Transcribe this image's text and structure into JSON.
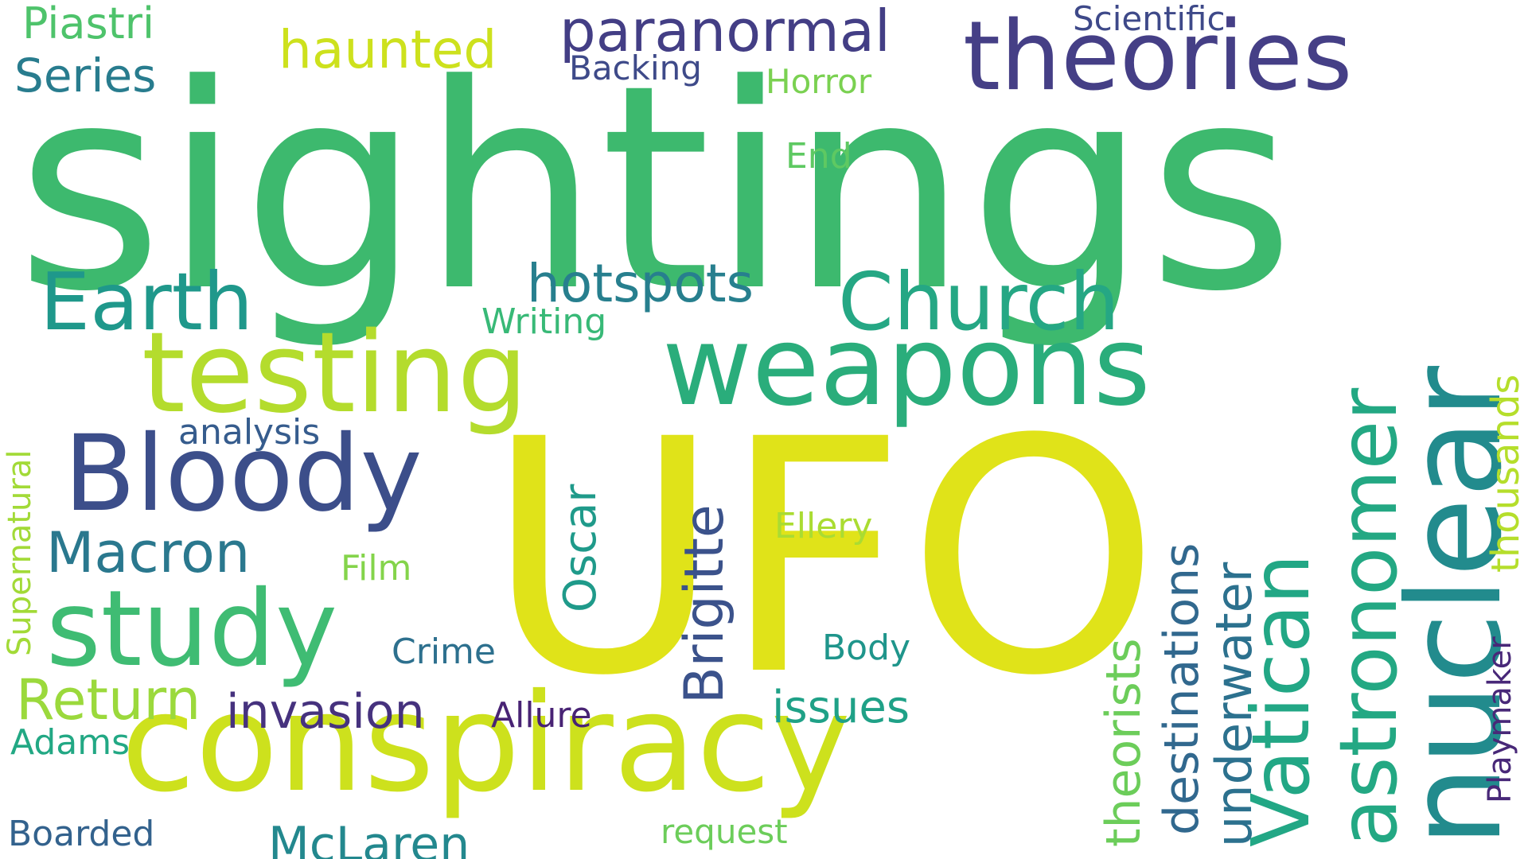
{
  "words": {
    "sightings": {
      "text": "sightings",
      "color": "#3db96e"
    },
    "ufo": {
      "text": "UFO",
      "color": "#e0e319"
    },
    "theories": {
      "text": "theories",
      "color": "#453f86"
    },
    "conspiracy": {
      "text": "conspiracy",
      "color": "#cde11d"
    },
    "weapons": {
      "text": "weapons",
      "color": "#2aad7b"
    },
    "testing": {
      "text": "testing",
      "color": "#b4dc2d"
    },
    "nuclear": {
      "text": "nuclear",
      "color": "#228b8d"
    },
    "bloody": {
      "text": "Bloody",
      "color": "#3c4e8a"
    },
    "study": {
      "text": "study",
      "color": "#3fbc73"
    },
    "church": {
      "text": "Church",
      "color": "#25a784"
    },
    "earth": {
      "text": "Earth",
      "color": "#1f988b"
    },
    "astronomer": {
      "text": "astronomer",
      "color": "#23a883"
    },
    "vatican": {
      "text": "Vatican",
      "color": "#22a785"
    },
    "paranormal": {
      "text": "paranormal",
      "color": "#433e85"
    },
    "hotspots": {
      "text": "hotspots",
      "color": "#277f8e"
    },
    "haunted": {
      "text": "haunted",
      "color": "#cde11d"
    },
    "brigitte": {
      "text": "Brigitte",
      "color": "#3b528b"
    },
    "invasion": {
      "text": "invasion",
      "color": "#46327e"
    },
    "return": {
      "text": "Return",
      "color": "#9bd93c"
    },
    "macron": {
      "text": "Macron",
      "color": "#2a788e"
    },
    "underwater": {
      "text": "underwater",
      "color": "#2c718e"
    },
    "destinations": {
      "text": "destinations",
      "color": "#31688e"
    },
    "theorists": {
      "text": "theorists",
      "color": "#6ccd5a"
    },
    "mclaren": {
      "text": "McLaren",
      "color": "#23888e"
    },
    "series": {
      "text": "Series",
      "color": "#287c8e"
    },
    "issues": {
      "text": "issues",
      "color": "#1fa187"
    },
    "thousands": {
      "text": "thousands",
      "color": "#b5de2b"
    },
    "oscar": {
      "text": "Oscar",
      "color": "#1f9a8a"
    },
    "piastri": {
      "text": "Piastri",
      "color": "#4ec36b"
    },
    "analysis": {
      "text": "analysis",
      "color": "#365c8d"
    },
    "scientific": {
      "text": "Scientific",
      "color": "#3e4989"
    },
    "backing": {
      "text": "Backing",
      "color": "#3e4a89"
    },
    "horror": {
      "text": "Horror",
      "color": "#7ad151"
    },
    "end": {
      "text": "End",
      "color": "#5ec962"
    },
    "writing": {
      "text": "Writing",
      "color": "#38b977"
    },
    "supernatural": {
      "text": "Supernatural",
      "color": "#a2da37"
    },
    "ellery": {
      "text": "Ellery",
      "color": "#aadc32"
    },
    "film": {
      "text": "Film",
      "color": "#84d44b"
    },
    "crime": {
      "text": "Crime",
      "color": "#2d708e"
    },
    "body": {
      "text": "Body",
      "color": "#1f958b"
    },
    "allure": {
      "text": "Allure",
      "color": "#482374"
    },
    "adams": {
      "text": "Adams",
      "color": "#22a884"
    },
    "playmaker": {
      "text": "Playmaker",
      "color": "#482878"
    },
    "boarded": {
      "text": "Boarded",
      "color": "#33628d"
    },
    "request": {
      "text": "request",
      "color": "#6ccd5a"
    }
  }
}
